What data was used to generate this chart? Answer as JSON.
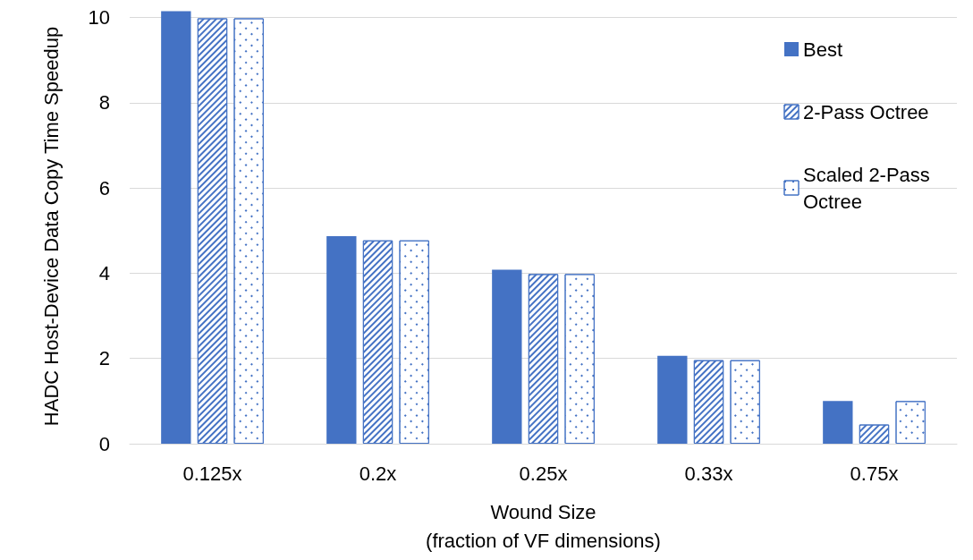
{
  "chart_data": {
    "type": "bar",
    "categories": [
      "0.125x",
      "0.2x",
      "0.25x",
      "0.33x",
      "0.75x"
    ],
    "series": [
      {
        "name": "Best",
        "color": "#4472c4",
        "values": [
          10.15,
          4.87,
          4.08,
          2.06,
          1.0
        ]
      },
      {
        "name": "2-Pass Octree",
        "color": "#4472c4",
        "values": [
          9.98,
          4.77,
          3.98,
          1.96,
          0.45
        ]
      },
      {
        "name": "Scaled 2-Pass Octree",
        "color": "#4472c4",
        "values": [
          9.98,
          4.77,
          3.98,
          1.96,
          1.0
        ]
      }
    ],
    "xlabel": "Wound Size\n(fraction of VF dimensions)",
    "ylabel": "HADC Host-Device Data Copy Time Speedup",
    "ylim": [
      0,
      10.2
    ],
    "yticks": [
      0,
      2,
      4,
      6,
      8,
      10
    ],
    "grid": "y",
    "legend": "top right"
  }
}
